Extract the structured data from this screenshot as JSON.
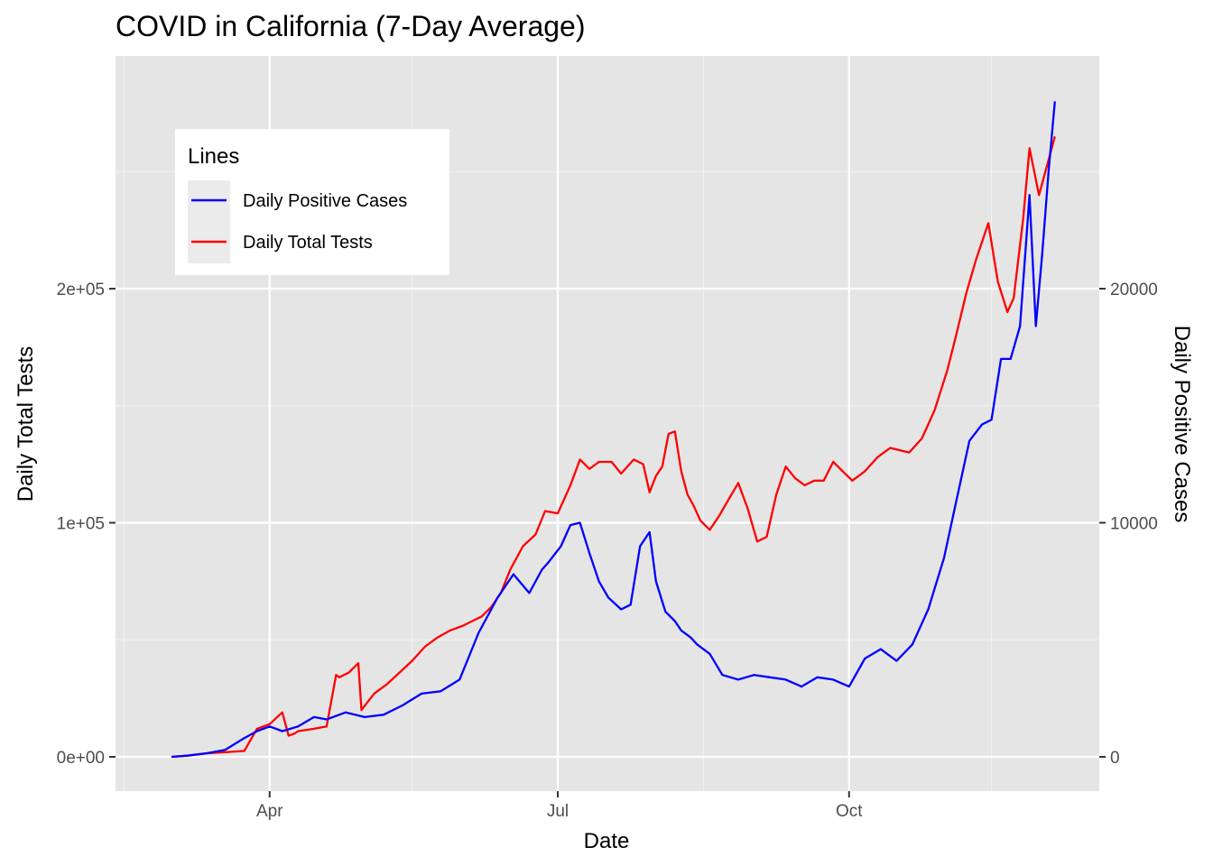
{
  "chart_data": {
    "type": "line",
    "title": "COVID in California (7-Day Average)",
    "xlabel": "Date",
    "ylabel": "Daily Total Tests",
    "ylabel_right": "Daily Positive Cases",
    "x_ticks": [
      "Apr",
      "Jul",
      "Oct"
    ],
    "y_ticks_left": [
      "0e+00",
      "1e+05",
      "2e+05"
    ],
    "y_ticks_right": [
      "0",
      "10000",
      "20000"
    ],
    "grid": true,
    "legend": {
      "title": "Lines",
      "position": "top-left",
      "entries": [
        {
          "label": "Daily Positive Cases",
          "color": "#0000ff"
        },
        {
          "label": "Daily Total Tests",
          "color": "#ff0000"
        }
      ]
    },
    "series": [
      {
        "name": "Daily Total Tests",
        "axis": "left",
        "color": "#ff0000",
        "x": [
          "2020-03-01",
          "2020-03-06",
          "2020-03-12",
          "2020-03-18",
          "2020-03-24",
          "2020-03-28",
          "2020-04-01",
          "2020-04-05",
          "2020-04-07",
          "2020-04-09",
          "2020-04-10",
          "2020-04-15",
          "2020-04-19",
          "2020-04-22",
          "2020-04-23",
          "2020-04-26",
          "2020-04-29",
          "2020-04-30",
          "2020-05-04",
          "2020-05-08",
          "2020-05-12",
          "2020-05-16",
          "2020-05-20",
          "2020-05-24",
          "2020-05-28",
          "2020-06-01",
          "2020-06-04",
          "2020-06-07",
          "2020-06-10",
          "2020-06-13",
          "2020-06-16",
          "2020-06-20",
          "2020-06-24",
          "2020-06-27",
          "2020-07-01",
          "2020-07-05",
          "2020-07-08",
          "2020-07-11",
          "2020-07-14",
          "2020-07-18",
          "2020-07-21",
          "2020-07-25",
          "2020-07-28",
          "2020-07-30",
          "2020-08-01",
          "2020-08-03",
          "2020-08-05",
          "2020-08-07",
          "2020-08-09",
          "2020-08-11",
          "2020-08-13",
          "2020-08-15",
          "2020-08-18",
          "2020-08-21",
          "2020-08-24",
          "2020-08-27",
          "2020-08-30",
          "2020-09-02",
          "2020-09-05",
          "2020-09-08",
          "2020-09-11",
          "2020-09-14",
          "2020-09-17",
          "2020-09-20",
          "2020-09-23",
          "2020-09-26",
          "2020-09-29",
          "2020-10-02",
          "2020-10-06",
          "2020-10-10",
          "2020-10-14",
          "2020-10-17",
          "2020-10-20",
          "2020-10-24",
          "2020-10-28",
          "2020-11-01",
          "2020-11-04",
          "2020-11-07",
          "2020-11-10",
          "2020-11-14",
          "2020-11-17",
          "2020-11-20",
          "2020-11-22",
          "2020-11-25",
          "2020-11-27",
          "2020-11-30",
          "2020-12-02",
          "2020-12-05"
        ],
        "values": [
          0,
          500,
          1500,
          2000,
          2500,
          12000,
          14000,
          19000,
          9000,
          10000,
          11000,
          12000,
          13000,
          35000,
          34000,
          36000,
          40000,
          20000,
          27000,
          31000,
          36000,
          41000,
          47000,
          51000,
          54000,
          56000,
          58000,
          60000,
          64000,
          70000,
          80000,
          90000,
          95000,
          105000,
          104000,
          116000,
          127000,
          123000,
          126000,
          126000,
          121000,
          127000,
          125000,
          113000,
          120000,
          124000,
          138000,
          139000,
          122000,
          112000,
          107000,
          101000,
          97000,
          103000,
          110000,
          117000,
          106000,
          92000,
          94000,
          112000,
          124000,
          119000,
          116000,
          118000,
          118000,
          126000,
          122000,
          118000,
          122000,
          128000,
          132000,
          131000,
          130000,
          136000,
          148000,
          165000,
          181000,
          198000,
          212000,
          228000,
          203000,
          190000,
          196000,
          230000,
          260000,
          240000,
          250000,
          265000
        ]
      },
      {
        "name": "Daily Positive Cases",
        "axis": "right",
        "color": "#0000ff",
        "x": [
          "2020-03-01",
          "2020-03-06",
          "2020-03-12",
          "2020-03-18",
          "2020-03-24",
          "2020-03-28",
          "2020-04-01",
          "2020-04-05",
          "2020-04-10",
          "2020-04-15",
          "2020-04-19",
          "2020-04-25",
          "2020-05-01",
          "2020-05-07",
          "2020-05-13",
          "2020-05-19",
          "2020-05-25",
          "2020-05-31",
          "2020-06-06",
          "2020-06-12",
          "2020-06-17",
          "2020-06-22",
          "2020-06-26",
          "2020-06-28",
          "2020-07-02",
          "2020-07-05",
          "2020-07-08",
          "2020-07-11",
          "2020-07-14",
          "2020-07-17",
          "2020-07-21",
          "2020-07-24",
          "2020-07-27",
          "2020-07-30",
          "2020-08-01",
          "2020-08-04",
          "2020-08-07",
          "2020-08-09",
          "2020-08-12",
          "2020-08-14",
          "2020-08-18",
          "2020-08-22",
          "2020-08-27",
          "2020-09-01",
          "2020-09-06",
          "2020-09-11",
          "2020-09-16",
          "2020-09-21",
          "2020-09-26",
          "2020-10-01",
          "2020-10-06",
          "2020-10-11",
          "2020-10-16",
          "2020-10-21",
          "2020-10-26",
          "2020-10-31",
          "2020-11-04",
          "2020-11-08",
          "2020-11-12",
          "2020-11-15",
          "2020-11-18",
          "2020-11-21",
          "2020-11-24",
          "2020-11-27",
          "2020-11-29",
          "2020-12-01",
          "2020-12-03",
          "2020-12-05"
        ],
        "values": [
          0,
          50,
          150,
          300,
          800,
          1100,
          1300,
          1100,
          1300,
          1700,
          1600,
          1900,
          1700,
          1800,
          2200,
          2700,
          2800,
          3300,
          5300,
          6800,
          7800,
          7000,
          8000,
          8300,
          9000,
          9900,
          10000,
          8700,
          7500,
          6800,
          6300,
          6500,
          9000,
          9600,
          7500,
          6200,
          5800,
          5400,
          5100,
          4800,
          4400,
          3500,
          3300,
          3500,
          3400,
          3300,
          3000,
          3400,
          3300,
          3000,
          4200,
          4600,
          4100,
          4800,
          6300,
          8500,
          11000,
          13500,
          14200,
          14400,
          17000,
          17000,
          18400,
          24000,
          18400,
          21500,
          25000,
          28000
        ]
      }
    ]
  }
}
